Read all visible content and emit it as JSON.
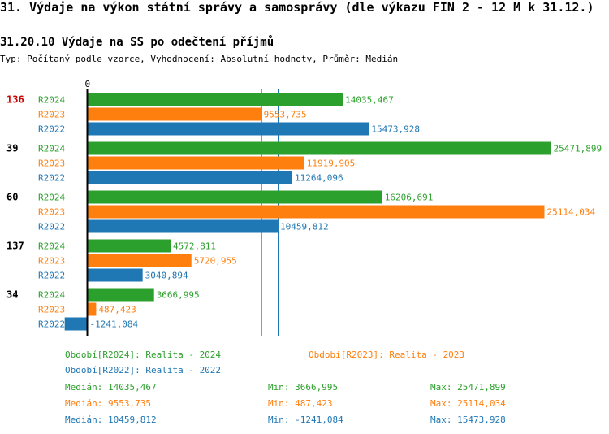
{
  "header": {
    "title": "31. Výdaje na výkon státní správy a samosprávy (dle výkazu FIN 2 - 12 M k 31.12.)",
    "subtitle": "31.20.10 Výdaje na SS po odečtení příjmů",
    "description": "Typ: Počítaný podle vzorce, Vyhodnocení: Absolutní hodnoty, Průměr: Medián"
  },
  "colors": {
    "R2024": "#2ca02c",
    "R2023": "#ff7f0e",
    "R2022": "#1f77b4",
    "highlight": "#cc0000"
  },
  "chart_data": {
    "type": "bar",
    "orientation": "horizontal",
    "axis_zero_label": "0",
    "xlim": [
      -1241.084,
      25471.899
    ],
    "groups": [
      {
        "label": "136",
        "highlight": true,
        "bars": [
          {
            "series": "R2024",
            "value": 14035.467,
            "label": "14035,467"
          },
          {
            "series": "R2023",
            "value": 9553.735,
            "label": "9553,735"
          },
          {
            "series": "R2022",
            "value": 15473.928,
            "label": "15473,928"
          }
        ]
      },
      {
        "label": "39",
        "highlight": false,
        "bars": [
          {
            "series": "R2024",
            "value": 25471.899,
            "label": "25471,899"
          },
          {
            "series": "R2023",
            "value": 11919.905,
            "label": "11919,905"
          },
          {
            "series": "R2022",
            "value": 11264.096,
            "label": "11264,096"
          }
        ]
      },
      {
        "label": "60",
        "highlight": false,
        "bars": [
          {
            "series": "R2024",
            "value": 16206.691,
            "label": "16206,691"
          },
          {
            "series": "R2023",
            "value": 25114.034,
            "label": "25114,034"
          },
          {
            "series": "R2022",
            "value": 10459.812,
            "label": "10459,812"
          }
        ]
      },
      {
        "label": "137",
        "highlight": false,
        "bars": [
          {
            "series": "R2024",
            "value": 4572.811,
            "label": "4572,811"
          },
          {
            "series": "R2023",
            "value": 5720.955,
            "label": "5720,955"
          },
          {
            "series": "R2022",
            "value": 3040.894,
            "label": "3040,894"
          }
        ]
      },
      {
        "label": "34",
        "highlight": false,
        "bars": [
          {
            "series": "R2024",
            "value": 3666.995,
            "label": "3666,995"
          },
          {
            "series": "R2023",
            "value": 487.423,
            "label": "487,423"
          },
          {
            "series": "R2022",
            "value": -1241.084,
            "label": "-1241,084"
          }
        ]
      }
    ],
    "median_lines": [
      {
        "series": "R2024",
        "value": 14035.467
      },
      {
        "series": "R2023",
        "value": 9553.735
      },
      {
        "series": "R2022",
        "value": 10459.812
      }
    ]
  },
  "legend": {
    "R2024": "Období[R2024]: Realita - 2024",
    "R2023": "Období[R2023]: Realita - 2023",
    "R2022": "Období[R2022]: Realita - 2022"
  },
  "stats": [
    {
      "series": "R2024",
      "median": "Medián: 14035,467",
      "min": "Min: 3666,995",
      "max": "Max: 25471,899"
    },
    {
      "series": "R2023",
      "median": "Medián: 9553,735",
      "min": "Min: 487,423",
      "max": "Max: 25114,034"
    },
    {
      "series": "R2022",
      "median": "Medián: 10459,812",
      "min": "Min: -1241,084",
      "max": "Max: 15473,928"
    }
  ]
}
